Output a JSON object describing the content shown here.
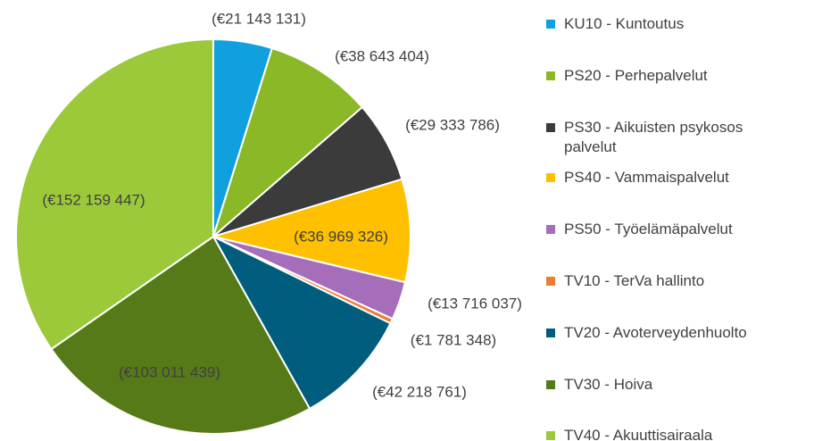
{
  "chart_data": {
    "type": "pie",
    "categories": [
      "KU10 - Kuntoutus",
      "PS20 - Perhepalvelut",
      "PS30 - Aikuisten psykosos\npalvelut",
      "PS40 - Vammaispalvelut",
      "PS50 - Työelämäpalvelut",
      "TV10 - TerVa hallinto",
      "TV20 - Avoterveydenhuolto",
      "TV30 - Hoiva",
      "TV40 - Akuuttisairaala"
    ],
    "values": [
      21143131,
      38643404,
      29333786,
      36969326,
      13716037,
      1781348,
      42218761,
      103011439,
      152159447
    ],
    "value_labels": [
      "(€21 143 131)",
      "(€38 643 404)",
      "(€29 333 786)",
      "(€36 969 326)",
      "(€13 716 037)",
      "(€1 781 348)",
      "(€42 218 761)",
      "(€103 011 439)",
      "(€152 159 447)"
    ],
    "colors": [
      "#109fdf",
      "#8ab827",
      "#3b3b3b",
      "#ffc000",
      "#a66dba",
      "#ed7d31",
      "#015d7e",
      "#577a19",
      "#9bc93a"
    ]
  }
}
